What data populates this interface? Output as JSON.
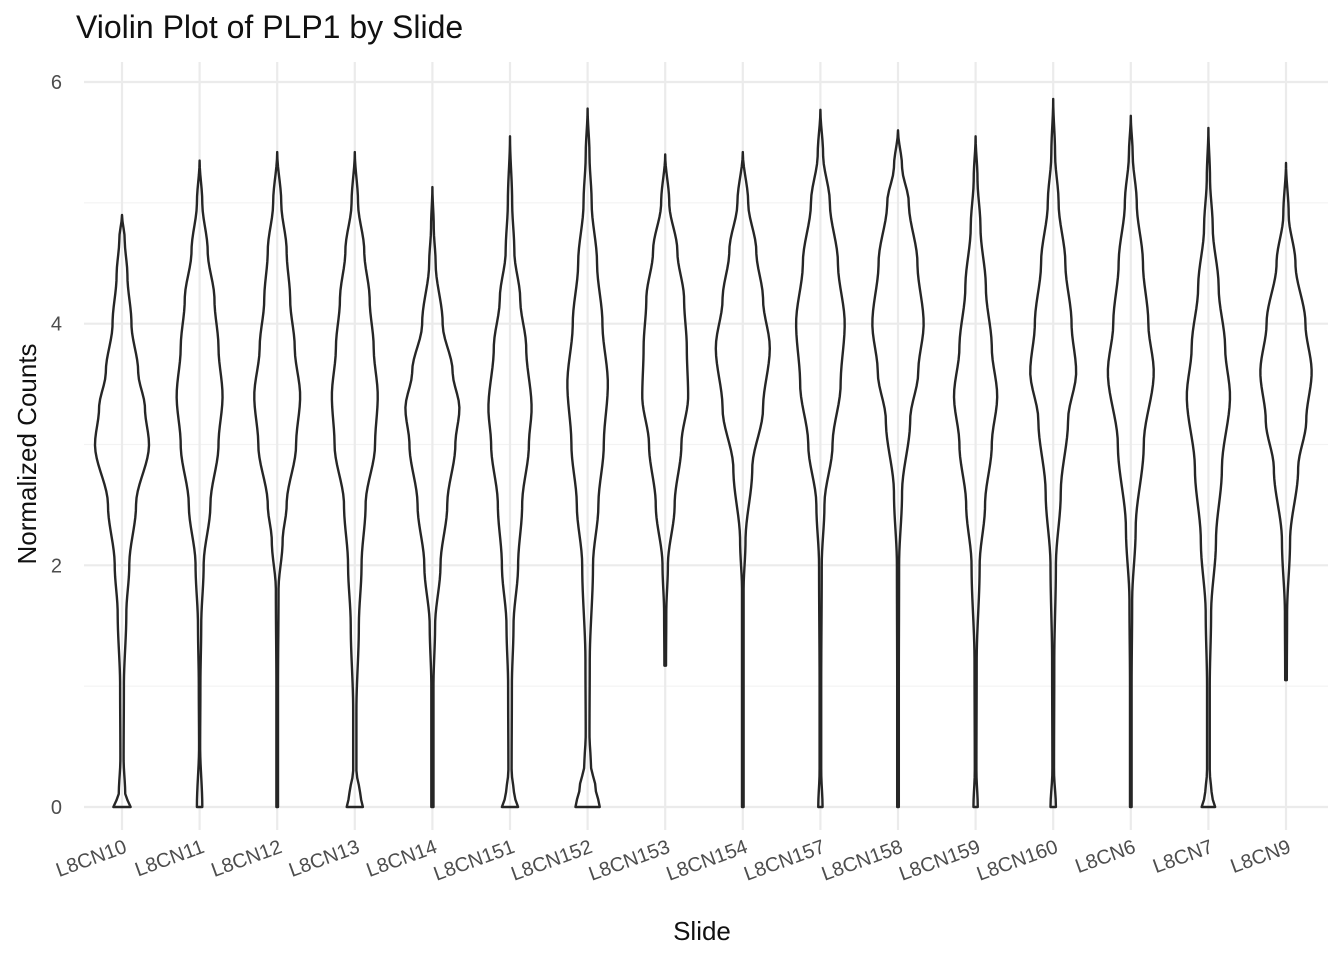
{
  "chart_data": {
    "type": "violin",
    "title": "Violin Plot of PLP1 by Slide",
    "xlabel": "Slide",
    "ylabel": "Normalized Counts",
    "ylim": [
      -0.3,
      6.25
    ],
    "yticks": [
      0,
      2,
      4,
      6
    ],
    "grid": true,
    "legend": "none",
    "categories": [
      "L8CN10",
      "L8CN11",
      "L8CN12",
      "L8CN13",
      "L8CN14",
      "L8CN151",
      "L8CN152",
      "L8CN153",
      "L8CN154",
      "L8CN157",
      "L8CN158",
      "L8CN159",
      "L8CN160",
      "L8CN6",
      "L8CN7",
      "L8CN9"
    ],
    "series": [
      {
        "category": "L8CN10",
        "min": 0,
        "max": 4.9,
        "zero_width": 0.32,
        "profile": [
          [
            0,
            0.32
          ],
          [
            0.1,
            0.12
          ],
          [
            0.4,
            0.06
          ],
          [
            1,
            0.07
          ],
          [
            1.6,
            0.16
          ],
          [
            2,
            0.27
          ],
          [
            2.5,
            0.52
          ],
          [
            3,
            1.0
          ],
          [
            3.3,
            0.85
          ],
          [
            3.6,
            0.6
          ],
          [
            4,
            0.35
          ],
          [
            4.4,
            0.2
          ],
          [
            4.7,
            0.1
          ],
          [
            4.9,
            0
          ]
        ]
      },
      {
        "category": "L8CN11",
        "min": 0,
        "max": 5.35,
        "zero_width": 0.1,
        "profile": [
          [
            0,
            0.1
          ],
          [
            0.5,
            0.02
          ],
          [
            1,
            0.03
          ],
          [
            1.5,
            0.06
          ],
          [
            2,
            0.15
          ],
          [
            2.5,
            0.4
          ],
          [
            3,
            0.7
          ],
          [
            3.4,
            0.85
          ],
          [
            3.8,
            0.7
          ],
          [
            4.2,
            0.55
          ],
          [
            4.6,
            0.3
          ],
          [
            5,
            0.1
          ],
          [
            5.35,
            0
          ]
        ]
      },
      {
        "category": "L8CN12",
        "min": 0,
        "max": 5.42,
        "zero_width": 0.03,
        "profile": [
          [
            0,
            0.03
          ],
          [
            1,
            0.03
          ],
          [
            1.8,
            0.05
          ],
          [
            2.2,
            0.2
          ],
          [
            2.5,
            0.35
          ],
          [
            3,
            0.7
          ],
          [
            3.4,
            0.85
          ],
          [
            3.8,
            0.65
          ],
          [
            4.2,
            0.48
          ],
          [
            4.6,
            0.35
          ],
          [
            5,
            0.15
          ],
          [
            5.42,
            0
          ]
        ]
      },
      {
        "category": "L8CN13",
        "min": 0,
        "max": 5.42,
        "zero_width": 0.3,
        "profile": [
          [
            0,
            0.3
          ],
          [
            0.1,
            0.2
          ],
          [
            0.3,
            0.06
          ],
          [
            0.8,
            0.06
          ],
          [
            1.5,
            0.15
          ],
          [
            2,
            0.25
          ],
          [
            2.5,
            0.4
          ],
          [
            3,
            0.75
          ],
          [
            3.4,
            0.85
          ],
          [
            3.8,
            0.7
          ],
          [
            4.2,
            0.55
          ],
          [
            4.6,
            0.35
          ],
          [
            5,
            0.12
          ],
          [
            5.42,
            0
          ]
        ]
      },
      {
        "category": "L8CN14",
        "min": 0,
        "max": 5.13,
        "zero_width": 0.04,
        "profile": [
          [
            0,
            0.04
          ],
          [
            1,
            0.04
          ],
          [
            1.5,
            0.1
          ],
          [
            2,
            0.3
          ],
          [
            2.5,
            0.55
          ],
          [
            3,
            0.85
          ],
          [
            3.3,
            1.0
          ],
          [
            3.6,
            0.75
          ],
          [
            4,
            0.38
          ],
          [
            4.5,
            0.12
          ],
          [
            4.8,
            0.05
          ],
          [
            5.13,
            0
          ]
        ]
      },
      {
        "category": "L8CN151",
        "min": 0,
        "max": 5.55,
        "zero_width": 0.3,
        "profile": [
          [
            0,
            0.3
          ],
          [
            0.1,
            0.15
          ],
          [
            0.3,
            0.06
          ],
          [
            1,
            0.07
          ],
          [
            1.5,
            0.13
          ],
          [
            2,
            0.3
          ],
          [
            2.5,
            0.45
          ],
          [
            3,
            0.7
          ],
          [
            3.3,
            0.8
          ],
          [
            3.8,
            0.6
          ],
          [
            4.2,
            0.38
          ],
          [
            4.6,
            0.16
          ],
          [
            5,
            0.08
          ],
          [
            5.55,
            0
          ]
        ]
      },
      {
        "category": "L8CN152",
        "min": 0,
        "max": 5.78,
        "zero_width": 0.45,
        "profile": [
          [
            0,
            0.45
          ],
          [
            0.15,
            0.3
          ],
          [
            0.35,
            0.12
          ],
          [
            0.6,
            0.07
          ],
          [
            1.2,
            0.08
          ],
          [
            2,
            0.2
          ],
          [
            2.5,
            0.4
          ],
          [
            3,
            0.6
          ],
          [
            3.5,
            0.75
          ],
          [
            4,
            0.55
          ],
          [
            4.5,
            0.35
          ],
          [
            5,
            0.15
          ],
          [
            5.4,
            0.07
          ],
          [
            5.78,
            0
          ]
        ]
      },
      {
        "category": "L8CN153",
        "min": 1.17,
        "max": 5.4,
        "zero_width": 0,
        "profile": [
          [
            1.17,
            0.03
          ],
          [
            1.6,
            0.04
          ],
          [
            2,
            0.1
          ],
          [
            2.5,
            0.35
          ],
          [
            3,
            0.6
          ],
          [
            3.4,
            0.85
          ],
          [
            3.8,
            0.8
          ],
          [
            4.2,
            0.7
          ],
          [
            4.6,
            0.45
          ],
          [
            5,
            0.15
          ],
          [
            5.4,
            0
          ]
        ]
      },
      {
        "category": "L8CN154",
        "min": 0,
        "max": 5.42,
        "zero_width": 0.03,
        "profile": [
          [
            0,
            0.03
          ],
          [
            1,
            0.03
          ],
          [
            1.8,
            0.03
          ],
          [
            2.2,
            0.1
          ],
          [
            2.8,
            0.35
          ],
          [
            3.3,
            0.75
          ],
          [
            3.8,
            1.0
          ],
          [
            4.2,
            0.75
          ],
          [
            4.6,
            0.5
          ],
          [
            5,
            0.2
          ],
          [
            5.42,
            0
          ]
        ]
      },
      {
        "category": "L8CN157",
        "min": 0,
        "max": 5.77,
        "zero_width": 0.08,
        "profile": [
          [
            0,
            0.08
          ],
          [
            0.3,
            0.03
          ],
          [
            1,
            0.03
          ],
          [
            2,
            0.05
          ],
          [
            2.5,
            0.15
          ],
          [
            3,
            0.45
          ],
          [
            3.5,
            0.75
          ],
          [
            4,
            0.9
          ],
          [
            4.5,
            0.65
          ],
          [
            5,
            0.35
          ],
          [
            5.4,
            0.1
          ],
          [
            5.77,
            0
          ]
        ]
      },
      {
        "category": "L8CN158",
        "min": 0,
        "max": 5.6,
        "zero_width": 0.03,
        "profile": [
          [
            0,
            0.03
          ],
          [
            1,
            0.03
          ],
          [
            2,
            0.04
          ],
          [
            2.6,
            0.15
          ],
          [
            3.2,
            0.45
          ],
          [
            3.6,
            0.75
          ],
          [
            4,
            0.95
          ],
          [
            4.5,
            0.72
          ],
          [
            5,
            0.4
          ],
          [
            5.3,
            0.15
          ],
          [
            5.6,
            0
          ]
        ]
      },
      {
        "category": "L8CN159",
        "min": 0,
        "max": 5.55,
        "zero_width": 0.08,
        "profile": [
          [
            0,
            0.08
          ],
          [
            0.3,
            0.03
          ],
          [
            1.2,
            0.04
          ],
          [
            2,
            0.15
          ],
          [
            2.5,
            0.35
          ],
          [
            3,
            0.6
          ],
          [
            3.4,
            0.8
          ],
          [
            3.8,
            0.6
          ],
          [
            4.3,
            0.38
          ],
          [
            4.8,
            0.18
          ],
          [
            5.2,
            0.07
          ],
          [
            5.55,
            0
          ]
        ]
      },
      {
        "category": "L8CN160",
        "min": 0,
        "max": 5.86,
        "zero_width": 0.1,
        "profile": [
          [
            0,
            0.1
          ],
          [
            0.3,
            0.03
          ],
          [
            1.2,
            0.04
          ],
          [
            2,
            0.1
          ],
          [
            2.6,
            0.28
          ],
          [
            3.2,
            0.55
          ],
          [
            3.6,
            0.85
          ],
          [
            4,
            0.68
          ],
          [
            4.5,
            0.45
          ],
          [
            5,
            0.2
          ],
          [
            5.4,
            0.07
          ],
          [
            5.86,
            0
          ]
        ]
      },
      {
        "category": "L8CN6",
        "min": 0,
        "max": 5.72,
        "zero_width": 0.03,
        "profile": [
          [
            0,
            0.03
          ],
          [
            1,
            0.03
          ],
          [
            1.7,
            0.05
          ],
          [
            2.3,
            0.18
          ],
          [
            3,
            0.48
          ],
          [
            3.6,
            0.85
          ],
          [
            4,
            0.65
          ],
          [
            4.5,
            0.45
          ],
          [
            5,
            0.22
          ],
          [
            5.4,
            0.07
          ],
          [
            5.72,
            0
          ]
        ]
      },
      {
        "category": "L8CN7",
        "min": 0,
        "max": 5.62,
        "zero_width": 0.25,
        "profile": [
          [
            0,
            0.25
          ],
          [
            0.1,
            0.12
          ],
          [
            0.3,
            0.05
          ],
          [
            1,
            0.05
          ],
          [
            1.6,
            0.1
          ],
          [
            2.2,
            0.28
          ],
          [
            2.8,
            0.5
          ],
          [
            3.4,
            0.8
          ],
          [
            3.8,
            0.62
          ],
          [
            4.3,
            0.38
          ],
          [
            4.8,
            0.16
          ],
          [
            5.2,
            0.06
          ],
          [
            5.62,
            0
          ]
        ]
      },
      {
        "category": "L8CN9",
        "min": 1.05,
        "max": 5.33,
        "zero_width": 0,
        "profile": [
          [
            1.05,
            0.03
          ],
          [
            1.6,
            0.04
          ],
          [
            2.2,
            0.15
          ],
          [
            2.8,
            0.45
          ],
          [
            3.2,
            0.75
          ],
          [
            3.6,
            0.95
          ],
          [
            4,
            0.72
          ],
          [
            4.5,
            0.35
          ],
          [
            4.9,
            0.1
          ],
          [
            5.33,
            0
          ]
        ]
      }
    ]
  }
}
